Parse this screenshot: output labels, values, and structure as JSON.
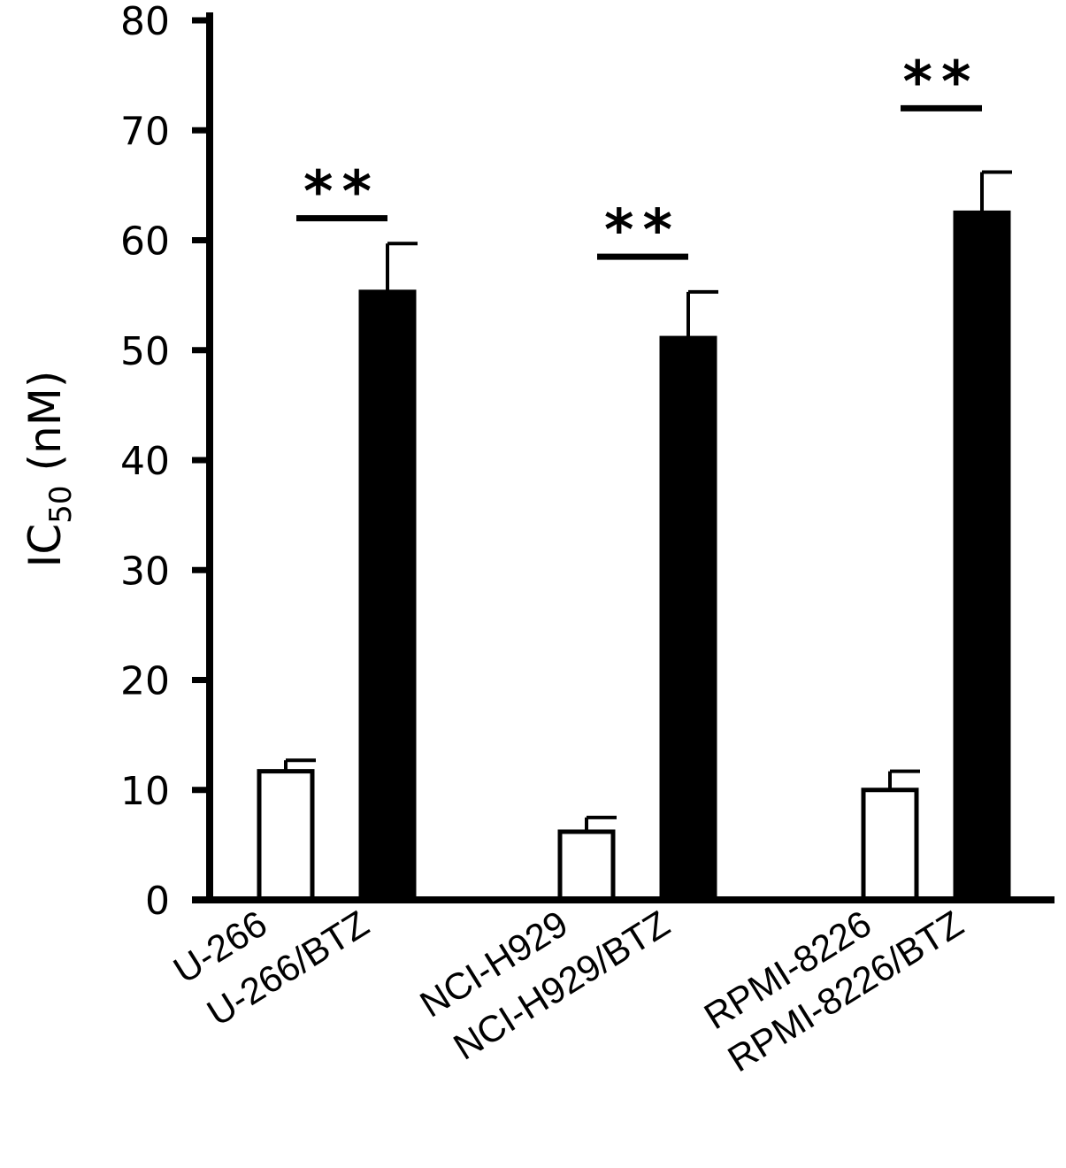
{
  "chart_data": {
    "type": "bar",
    "ylabel_main": "IC",
    "ylabel_sub": "50",
    "ylabel_unit": "(nM)",
    "ylim": [
      0,
      80
    ],
    "yticks": [
      "0",
      "10",
      "20",
      "30",
      "40",
      "50",
      "60",
      "70",
      "80"
    ],
    "categories": [
      "U-266",
      "U-266/BTZ",
      "NCI-H929",
      "NCI-H929/BTZ",
      "RPMI-8226",
      "RPMI-8226/BTZ"
    ],
    "values": [
      11.7,
      55.3,
      6.2,
      51.1,
      10.0,
      62.5
    ],
    "errors": [
      1.0,
      4.4,
      1.3,
      4.2,
      1.7,
      3.7
    ],
    "fills": [
      "#ffffff",
      "#000000",
      "#ffffff",
      "#000000",
      "#ffffff",
      "#000000"
    ],
    "significance": [
      {
        "pair": [
          0,
          1
        ],
        "label": "**",
        "y": 62
      },
      {
        "pair": [
          2,
          3
        ],
        "label": "**",
        "y": 58.5
      },
      {
        "pair": [
          4,
          5
        ],
        "label": "**",
        "y": 72
      }
    ],
    "grid": false,
    "legend": "none"
  },
  "colors": {
    "axis": "#000000",
    "bar_outline": "#000000",
    "background": "#ffffff"
  }
}
